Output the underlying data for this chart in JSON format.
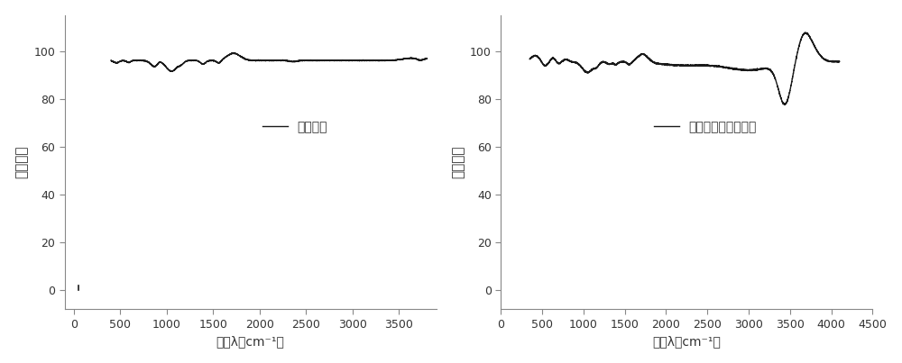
{
  "plot1": {
    "xlabel": "波长λ（cm⁻¹）",
    "ylabel": "吸收强度",
    "legend": "竹生物炭",
    "xlim": [
      -100,
      3900
    ],
    "ylim": [
      -8,
      115
    ],
    "xticks": [
      0,
      500,
      1000,
      1500,
      2000,
      2500,
      3000,
      3500
    ],
    "yticks": [
      0,
      20,
      40,
      60,
      80,
      100
    ]
  },
  "plot2": {
    "xlabel": "波长λ（cm⁻¹）",
    "ylabel": "吸收强度",
    "legend": "壳聚糖改性竹生物炭",
    "xlim": [
      0,
      4500
    ],
    "ylim": [
      -8,
      115
    ],
    "xticks": [
      0,
      500,
      1000,
      1500,
      2000,
      2500,
      3000,
      3500,
      4000,
      4500
    ],
    "yticks": [
      0,
      20,
      40,
      60,
      80,
      100
    ]
  },
  "line_color": "#1a1a1a",
  "line_width": 1.0,
  "text_color": "#333333",
  "bg_color": "#ffffff",
  "fig_color": "#ffffff"
}
